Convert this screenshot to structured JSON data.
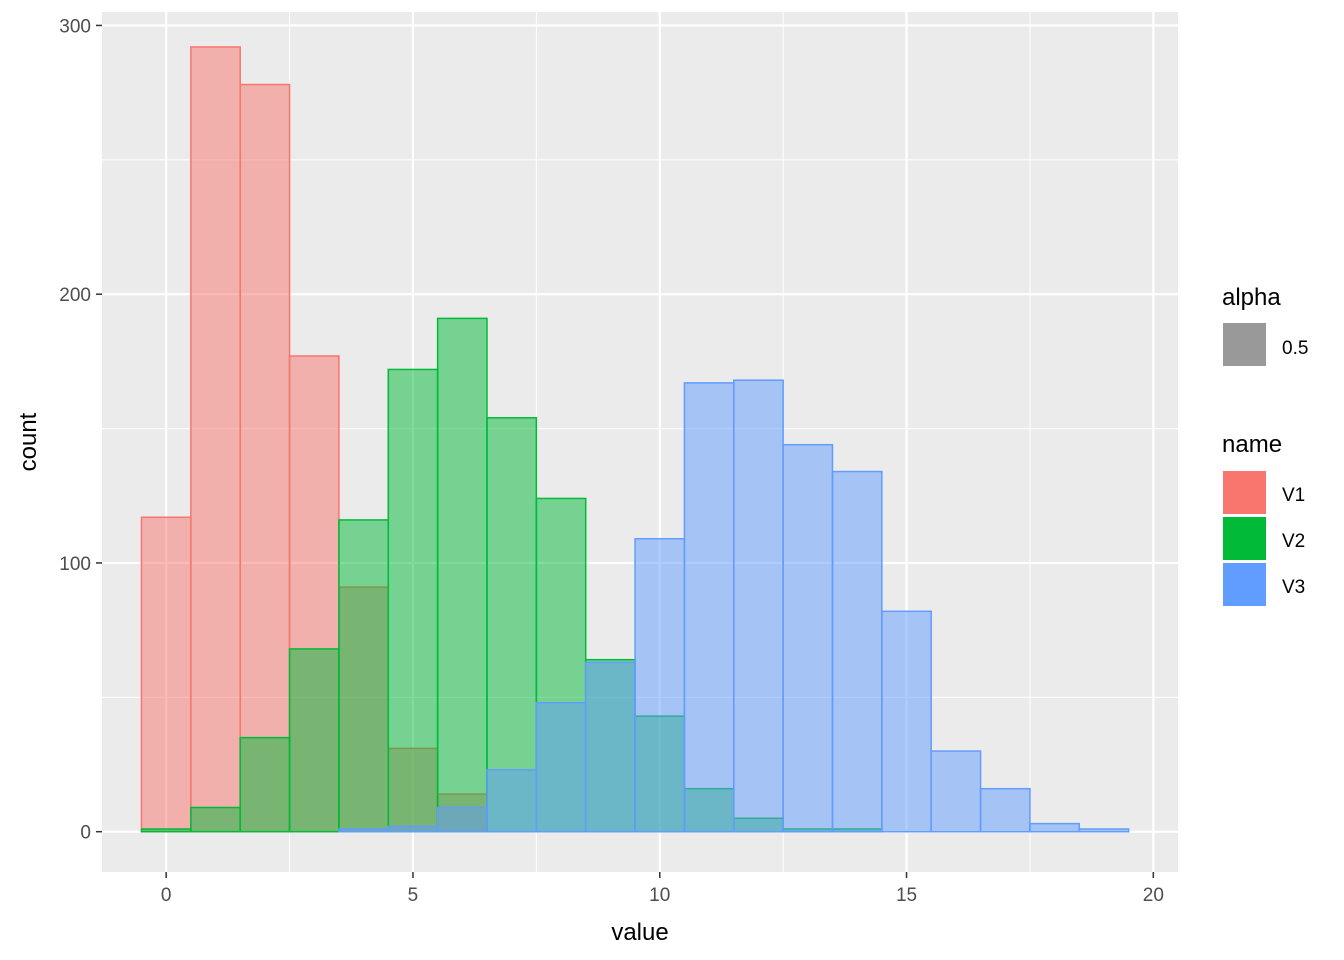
{
  "chart_data": {
    "type": "bar",
    "subtype": "overlapping-histogram",
    "xlabel": "value",
    "ylabel": "count",
    "xlim": [
      -1.3,
      20.5
    ],
    "ylim": [
      -15,
      305
    ],
    "x_ticks": [
      0,
      5,
      10,
      15,
      20
    ],
    "y_ticks": [
      0,
      100,
      200,
      300
    ],
    "x_tick_labels": [
      "0",
      "5",
      "10",
      "15",
      "20"
    ],
    "y_tick_labels": [
      "0",
      "100",
      "200",
      "300"
    ],
    "bin_width": 1,
    "bin_centers": [
      0,
      1,
      2,
      3,
      4,
      5,
      6,
      7,
      8,
      9,
      10,
      11,
      12,
      13,
      14,
      15,
      16,
      17,
      18,
      19
    ],
    "grid": true,
    "panel_background": "#ebebeb",
    "fill_alpha": 0.5,
    "series": [
      {
        "name": "V1",
        "color": "#F8766D",
        "values": [
          117,
          292,
          278,
          177,
          91,
          31,
          14,
          0,
          0,
          0,
          0,
          0,
          0,
          0,
          0,
          0,
          0,
          0,
          0,
          0
        ]
      },
      {
        "name": "V2",
        "color": "#00BA38",
        "values": [
          1,
          9,
          35,
          68,
          116,
          172,
          191,
          154,
          124,
          64,
          43,
          16,
          5,
          1,
          1,
          0,
          0,
          0,
          0,
          0
        ]
      },
      {
        "name": "V3",
        "color": "#619CFF",
        "values": [
          0,
          0,
          0,
          0,
          1,
          2,
          9,
          23,
          48,
          63,
          109,
          167,
          168,
          144,
          134,
          82,
          30,
          16,
          3,
          1
        ]
      }
    ],
    "legend": {
      "position": "right",
      "alpha": {
        "title": "alpha",
        "label": "0.5",
        "color": "#999999"
      },
      "fill": {
        "title": "name",
        "labels": [
          "V1",
          "V2",
          "V3"
        ]
      }
    }
  }
}
